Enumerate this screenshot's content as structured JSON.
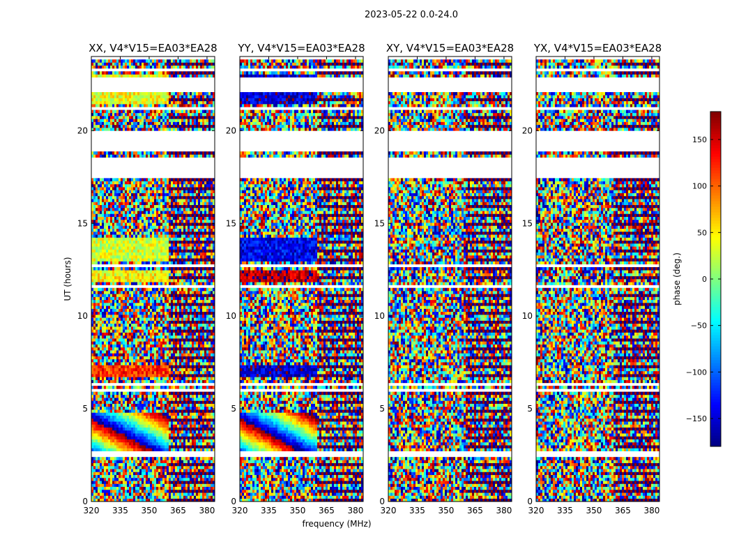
{
  "chart_data": {
    "type": "heatmap",
    "suptitle": "2023-05-22 0.0-24.0",
    "panels": [
      {
        "title": "XX, V4*V15=EA03*EA28",
        "pol": "XX"
      },
      {
        "title": "YY, V4*V15=EA03*EA28",
        "pol": "YY"
      },
      {
        "title": "XY, V4*V15=EA03*EA28",
        "pol": "XY"
      },
      {
        "title": "YX, V4*V15=EA03*EA28",
        "pol": "YX"
      }
    ],
    "xlabel": "frequency (MHz)",
    "ylabel": "UT (hours)",
    "xlim": [
      320,
      384
    ],
    "ylim": [
      0,
      24
    ],
    "xticks": [
      320,
      335,
      350,
      365,
      380
    ],
    "yticks": [
      0,
      5,
      10,
      15,
      20
    ],
    "colorbar": {
      "label": "phase (deg.)",
      "range": [
        -180,
        180
      ],
      "ticks": [
        -150,
        -100,
        -50,
        0,
        50,
        100,
        150
      ],
      "colormap": "jet"
    },
    "flagged_time_ranges_hours": [
      [
        2.45,
        2.75
      ],
      [
        6.2,
        6.4
      ],
      [
        6.0,
        6.08
      ],
      [
        11.6,
        11.75
      ],
      [
        12.65,
        12.75
      ],
      [
        17.5,
        18.5
      ],
      [
        18.9,
        19.2
      ],
      [
        19.15,
        20.0
      ],
      [
        21.1,
        21.35
      ],
      [
        22.15,
        22.95
      ],
      [
        23.2,
        23.4
      ],
      [
        23.8,
        24.0
      ]
    ],
    "frequency_boundary_mhz": 360,
    "coherent_phase_regions": [
      {
        "panel": "XX",
        "t0": 21.4,
        "t1": 23.0,
        "f1": 360,
        "phase": 40
      },
      {
        "panel": "XX",
        "t0": 13.0,
        "t1": 14.2,
        "f1": 360,
        "phase": 30
      },
      {
        "panel": "XX",
        "t0": 11.8,
        "t1": 12.5,
        "f1": 360,
        "phase": 45
      },
      {
        "panel": "XX",
        "t0": 6.8,
        "t1": 7.4,
        "f1": 360,
        "phase": 120
      },
      {
        "panel": "YY",
        "t0": 21.4,
        "t1": 23.0,
        "f1": 360,
        "phase": -150
      },
      {
        "panel": "YY",
        "t0": 13.0,
        "t1": 14.2,
        "f1": 360,
        "phase": -140
      },
      {
        "panel": "YY",
        "t0": 11.8,
        "t1": 12.5,
        "f1": 360,
        "phase": 160
      },
      {
        "panel": "YY",
        "t0": 6.8,
        "t1": 7.4,
        "f1": 360,
        "phase": -150
      }
    ]
  }
}
